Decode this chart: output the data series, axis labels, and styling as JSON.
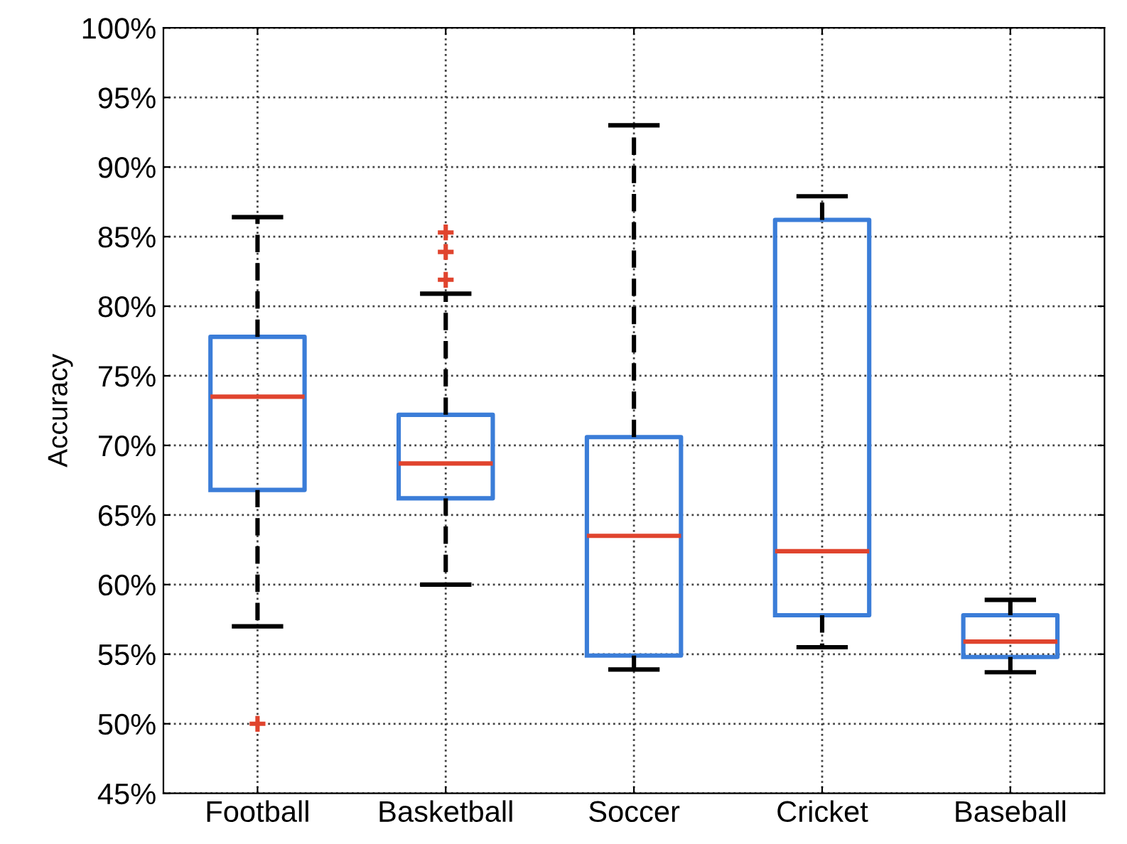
{
  "chart_data": {
    "type": "box",
    "ylabel": "Accuracy",
    "categories": [
      "Football",
      "Basketball",
      "Soccer",
      "Cricket",
      "Baseball"
    ],
    "series": [
      {
        "color": "#3b7dd8",
        "boxes": [
          {
            "low": 57.0,
            "q1": 66.8,
            "median": 73.5,
            "q3": 77.8,
            "high": 86.4,
            "outliers": [
              50.0
            ]
          },
          {
            "low": 60.0,
            "q1": 66.2,
            "median": 68.7,
            "q3": 72.2,
            "high": 80.9,
            "outliers": [
              81.9,
              83.9,
              85.3
            ]
          },
          {
            "low": 53.9,
            "q1": 54.9,
            "median": 63.5,
            "q3": 70.6,
            "high": 93.0
          },
          {
            "low": 55.5,
            "q1": 57.8,
            "median": 62.4,
            "q3": 86.2,
            "high": 87.9
          },
          {
            "low": 53.7,
            "q1": 54.8,
            "median": 55.9,
            "q3": 57.8,
            "high": 58.9
          }
        ]
      }
    ],
    "ylim": [
      45,
      100
    ],
    "yticks": [
      {
        "value": 45,
        "label": "45%"
      },
      {
        "value": 50,
        "label": "50%"
      },
      {
        "value": 55,
        "label": "55%"
      },
      {
        "value": 60,
        "label": "60%"
      },
      {
        "value": 65,
        "label": "65%"
      },
      {
        "value": 70,
        "label": "70%"
      },
      {
        "value": 75,
        "label": "75%"
      },
      {
        "value": 80,
        "label": "80%"
      },
      {
        "value": 85,
        "label": "85%"
      },
      {
        "value": 90,
        "label": "90%"
      },
      {
        "value": 95,
        "label": "95%"
      },
      {
        "value": 100,
        "label": "100%"
      }
    ],
    "grid": true
  }
}
